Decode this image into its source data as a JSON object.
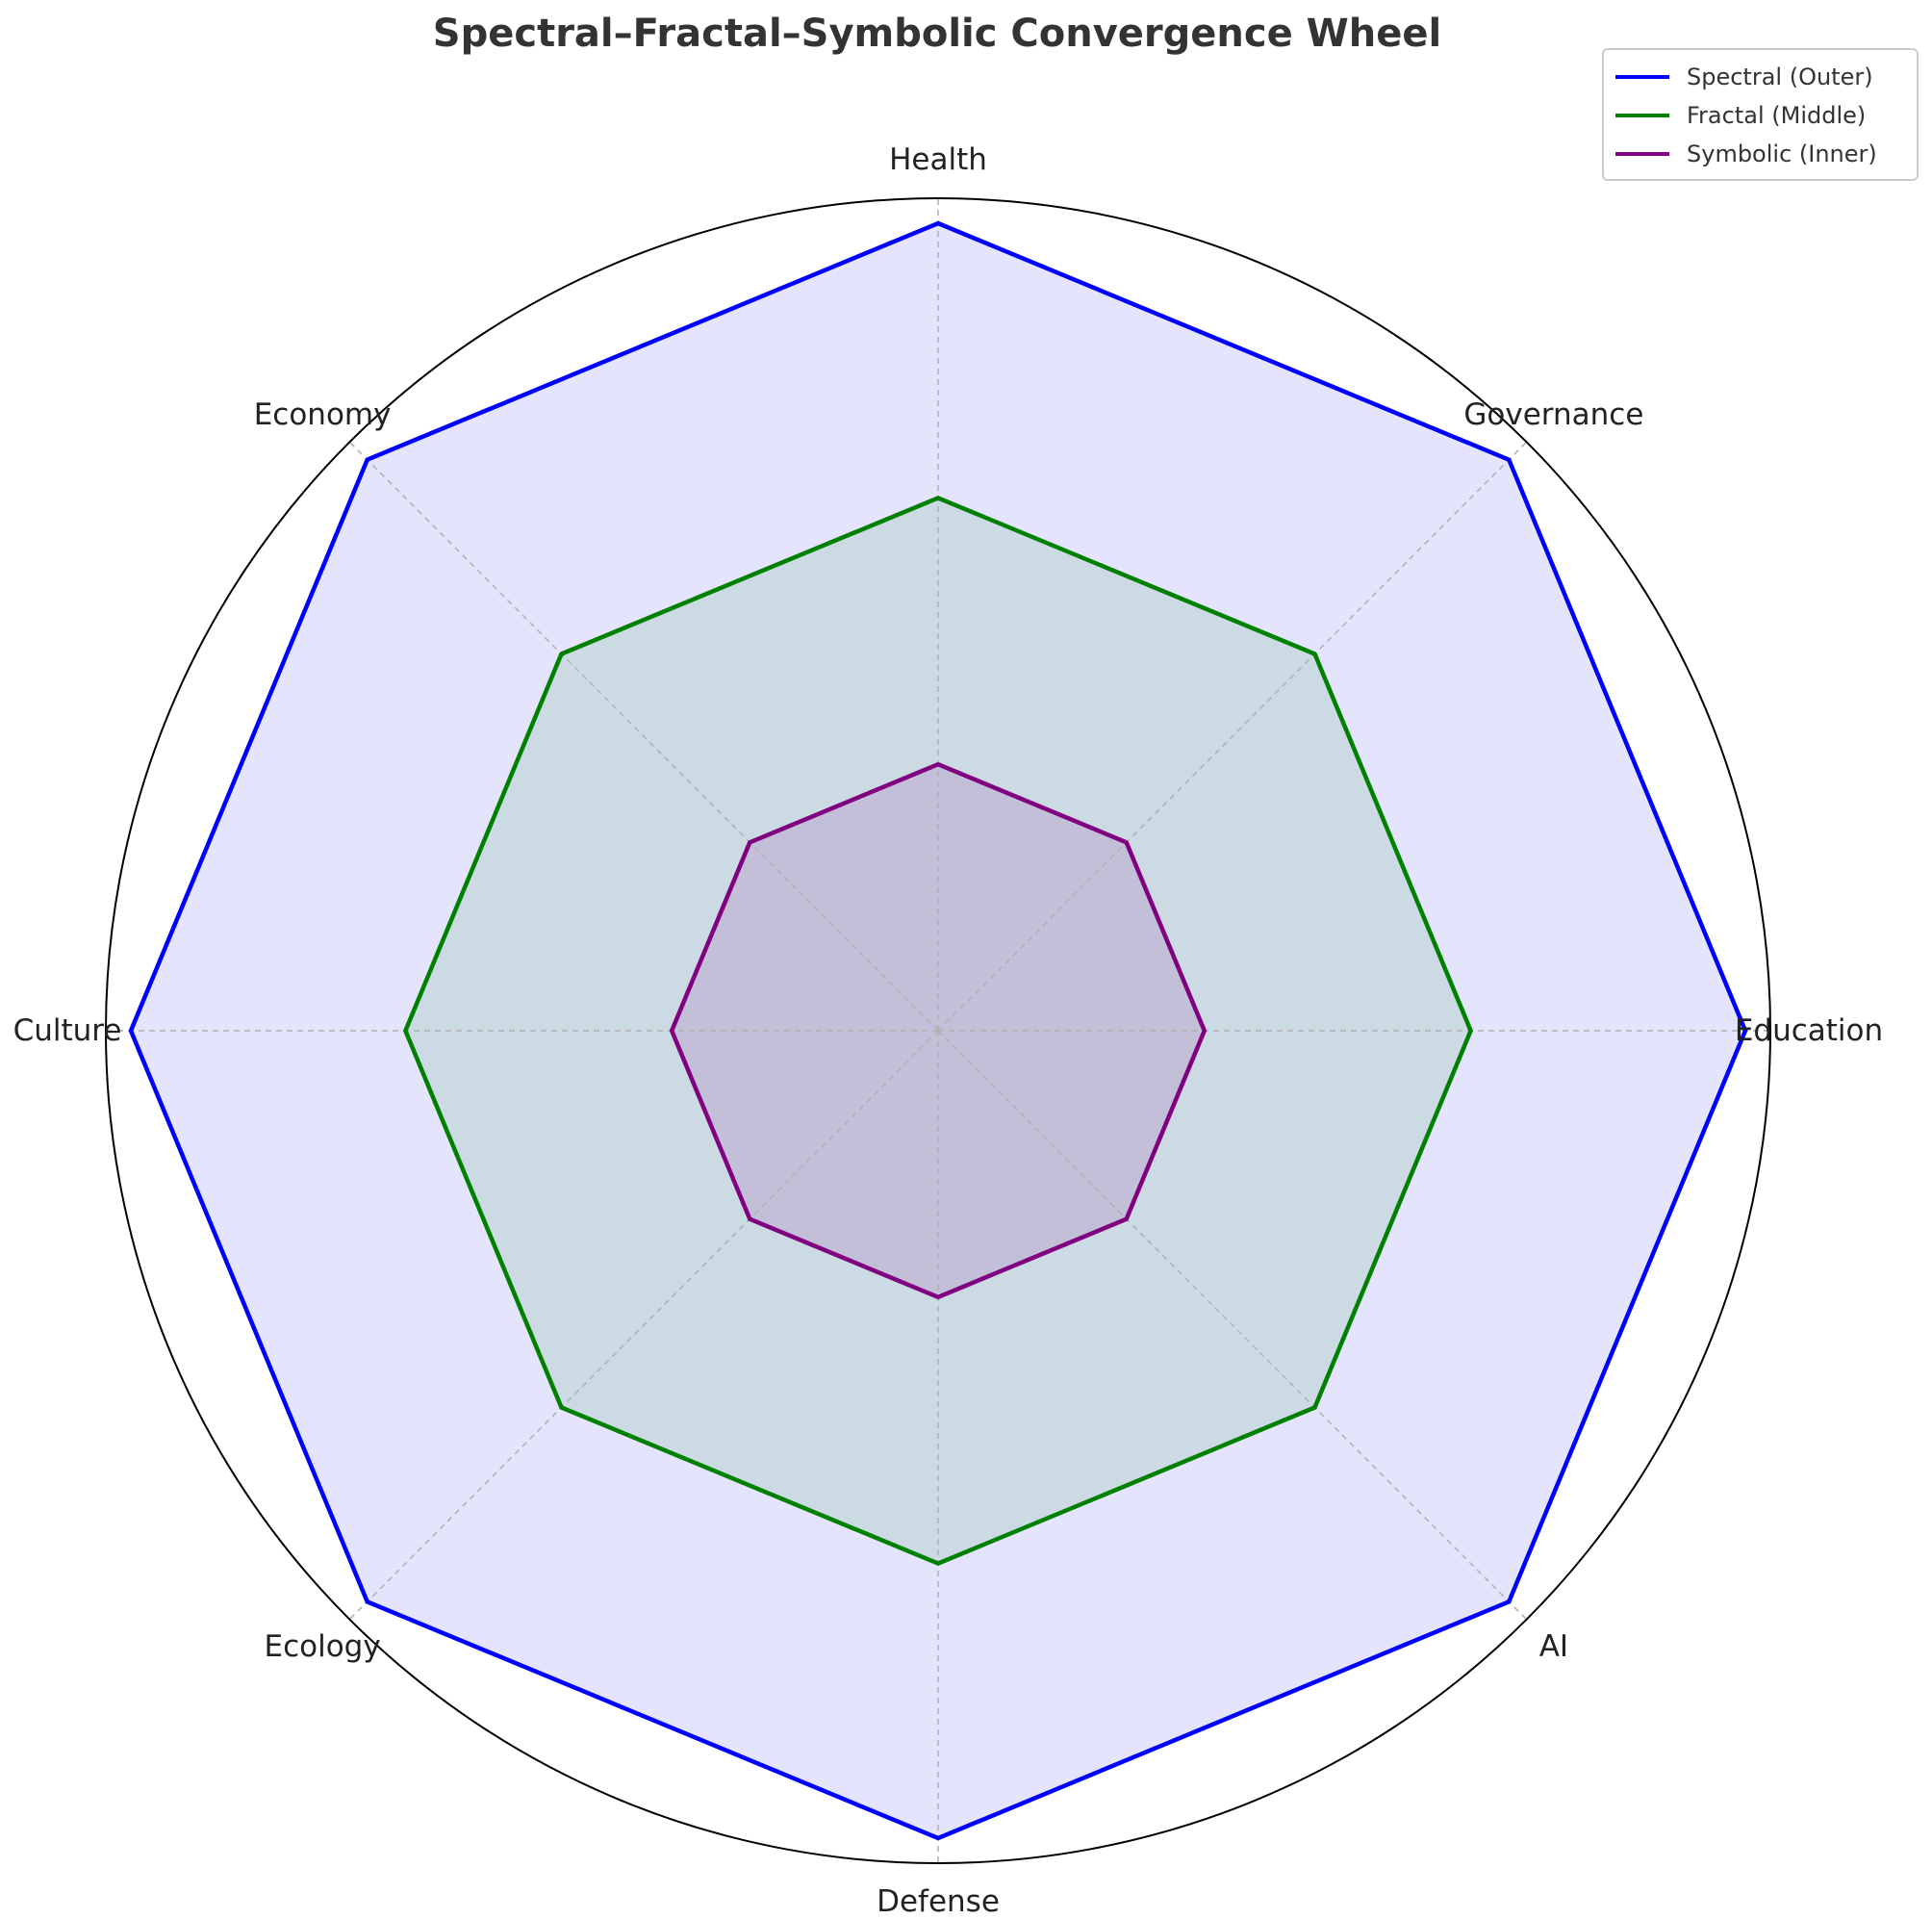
{
  "chart_data": {
    "type": "radar",
    "title": "Spectral–Fractal–Symbolic Convergence Wheel",
    "categories": [
      "Health",
      "Governance",
      "Education",
      "AI",
      "Defense",
      "Ecology",
      "Culture",
      "Economy"
    ],
    "rmax": 1.0,
    "grid": true,
    "legend_position": "top-right",
    "series": [
      {
        "name": "Spectral (Outer)",
        "values": [
          0.97,
          0.97,
          0.97,
          0.97,
          0.97,
          0.97,
          0.97,
          0.97
        ],
        "color": "#0000ff",
        "fill": "#e4e4fc"
      },
      {
        "name": "Fractal (Middle)",
        "values": [
          0.64,
          0.64,
          0.64,
          0.64,
          0.64,
          0.64,
          0.64,
          0.64
        ],
        "color": "#008000",
        "fill": "#ccdae4"
      },
      {
        "name": "Symbolic (Inner)",
        "values": [
          0.32,
          0.32,
          0.32,
          0.32,
          0.32,
          0.32,
          0.32,
          0.32
        ],
        "color": "#800080",
        "fill": "#c3bfd8"
      }
    ]
  }
}
